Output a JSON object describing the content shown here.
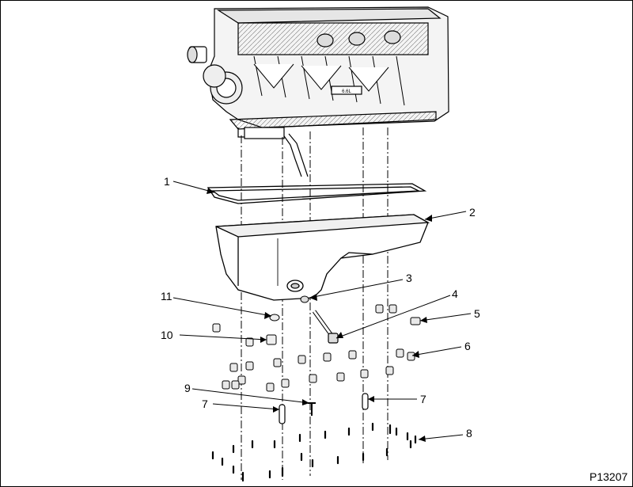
{
  "figure_id": "P13207",
  "engine_plate_text": "6.6L",
  "callouts": [
    {
      "label": "1"
    },
    {
      "label": "2"
    },
    {
      "label": "3"
    },
    {
      "label": "4"
    },
    {
      "label": "5"
    },
    {
      "label": "6"
    },
    {
      "label": "7"
    },
    {
      "label": "7"
    },
    {
      "label": "8"
    },
    {
      "label": "9"
    },
    {
      "label": "10"
    },
    {
      "label": "11"
    }
  ]
}
